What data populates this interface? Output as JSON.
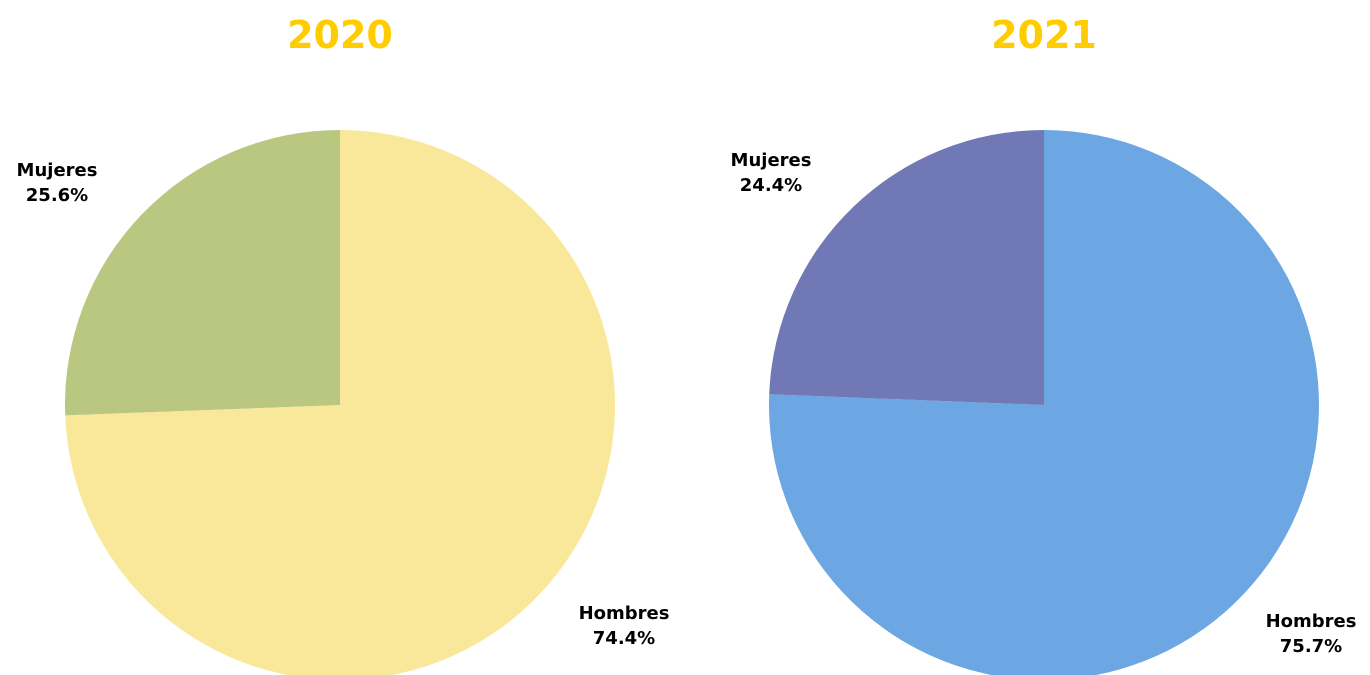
{
  "chart_data": [
    {
      "type": "pie",
      "title": "2020",
      "title_color": "#FFCC00",
      "slices": [
        {
          "label": "Hombres",
          "value": 74.4,
          "value_label": "74.4%",
          "color": "#FAE89A"
        },
        {
          "label": "Mujeres",
          "value": 25.6,
          "value_label": "25.6%",
          "color": "#B9C781"
        }
      ],
      "legend": "none"
    },
    {
      "type": "pie",
      "title": "2021",
      "title_color": "#FFCC00",
      "slices": [
        {
          "label": "Hombres",
          "value": 75.7,
          "value_label": "75.7%",
          "color": "#6CA6E3"
        },
        {
          "label": "Mujeres",
          "value": 24.4,
          "value_label": "24.4%",
          "color": "#7178B6"
        }
      ],
      "legend": "none"
    }
  ]
}
